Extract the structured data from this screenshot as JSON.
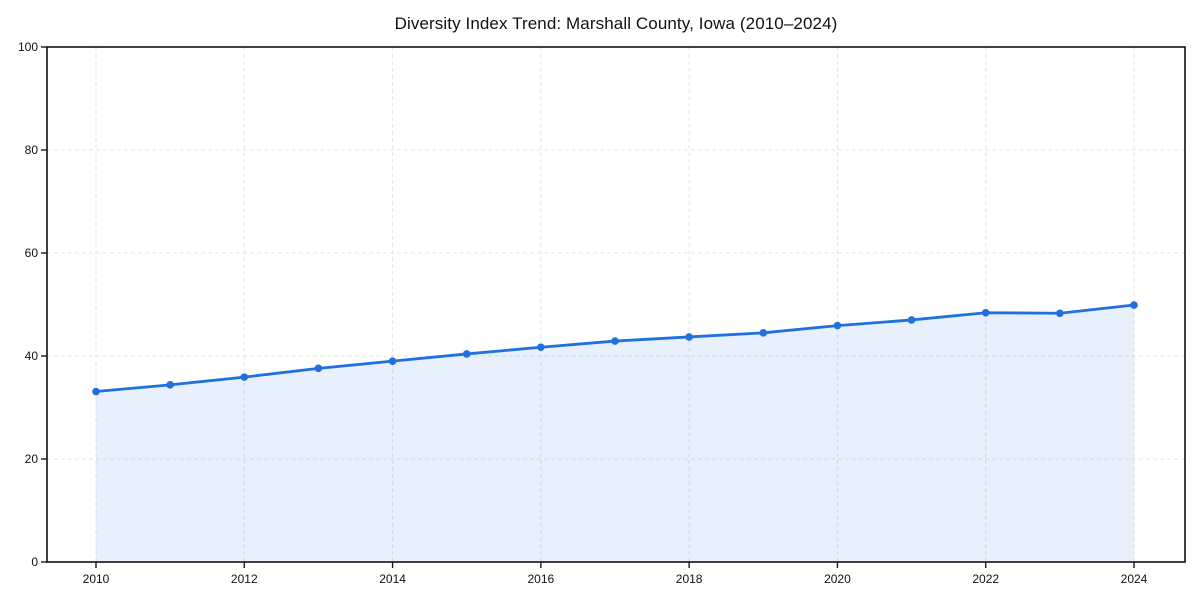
{
  "figure": {
    "title": "Diversity Index Trend: Marshall County, Iowa (2010–2024)"
  },
  "chart_data": {
    "type": "line",
    "title": "Diversity Index Trend: Marshall County, Iowa (2010–2024)",
    "x": [
      2010,
      2011,
      2012,
      2013,
      2014,
      2015,
      2016,
      2017,
      2018,
      2019,
      2020,
      2021,
      2022,
      2023,
      2024
    ],
    "series": [
      {
        "name": "Diversity Index",
        "values": [
          33.1,
          34.4,
          35.9,
          37.6,
          39.0,
          40.4,
          41.7,
          42.9,
          43.7,
          44.5,
          45.9,
          47.0,
          48.4,
          48.3,
          49.9
        ]
      }
    ],
    "xlabel": "",
    "ylabel": "",
    "xticks": [
      2010,
      2012,
      2014,
      2016,
      2018,
      2020,
      2022,
      2024
    ],
    "yticks": [
      0,
      20,
      40,
      60,
      80,
      100
    ],
    "ylim": [
      0,
      100
    ],
    "grid": true,
    "grid_style": "dashed",
    "legend": false,
    "marker": "circle",
    "line_color": "#2070e0",
    "marker_color": "#2070e0",
    "fill_color": "rgba(32,112,224,0.10)",
    "axis_color": "#111111",
    "background": "#ffffff"
  }
}
